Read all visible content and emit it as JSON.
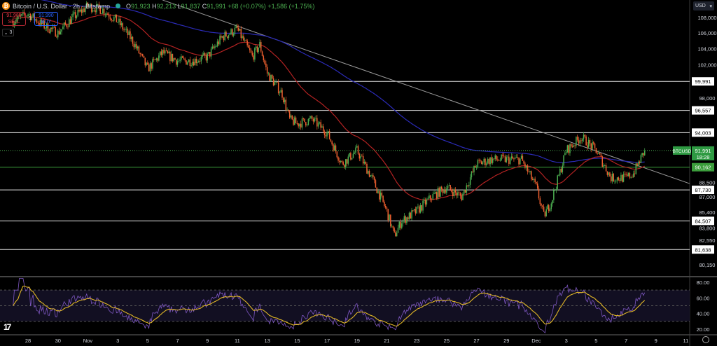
{
  "header": {
    "symbol_title": "Bitcoin / U.S. Dollar · 2h · Bitstamp",
    "ohlc": {
      "o_label": "O",
      "o": "91,923",
      "h_label": "H",
      "h": "92,213",
      "l_label": "L",
      "l": "91,837",
      "c_label": "C",
      "c": "91,991",
      "change": "+68 (+0.07%)",
      "change2": "+1,586 (+1.75%)"
    },
    "sell_price": "91,989",
    "sell_label": "SELL",
    "spread": "1",
    "buy_price": "91,990",
    "buy_label": "BUY",
    "collapsed_count": "3"
  },
  "currency": "USD",
  "colors": {
    "up": "#4caf50",
    "down": "#f0602f",
    "ma_fast": "#b22222",
    "ma_slow": "#2b2bb8",
    "rsi": "#7e57c2",
    "rsi_ma": "#e0b627",
    "level": "#e6e6e6",
    "support": "#3b9d3b",
    "trend": "#9a9a9a"
  },
  "chart_data": {
    "type": "candlestick",
    "scale": "log",
    "ylim": [
      79500,
      110000
    ],
    "xlim": [
      "2025-10-26T00:00",
      "2025-12-12T08:00"
    ],
    "interval": "2h",
    "price_path": [
      [
        "2025-10-27",
        107500
      ],
      [
        "2025-10-28",
        108500
      ],
      [
        "2025-10-29",
        107000
      ],
      [
        "2025-10-30",
        106000
      ],
      [
        "2025-10-31",
        108000
      ],
      [
        "2025-11-01",
        109500
      ],
      [
        "2025-11-02",
        109000
      ],
      [
        "2025-11-03",
        107500
      ],
      [
        "2025-11-04",
        105000
      ],
      [
        "2025-11-05",
        101500
      ],
      [
        "2025-11-06",
        103500
      ],
      [
        "2025-11-07",
        102500
      ],
      [
        "2025-11-08",
        102500
      ],
      [
        "2025-11-09",
        103000
      ],
      [
        "2025-11-10",
        105500
      ],
      [
        "2025-11-11",
        106500
      ],
      [
        "2025-11-12",
        103000
      ],
      [
        "2025-11-12T12:00",
        104500
      ],
      [
        "2025-11-13",
        101000
      ],
      [
        "2025-11-14",
        98500
      ],
      [
        "2025-11-14T12:00",
        95500
      ],
      [
        "2025-11-15",
        95000
      ],
      [
        "2025-11-16",
        95500
      ],
      [
        "2025-11-17",
        94000
      ],
      [
        "2025-11-18",
        90500
      ],
      [
        "2025-11-19",
        92000
      ],
      [
        "2025-11-20",
        89000
      ],
      [
        "2025-11-21",
        85500
      ],
      [
        "2025-11-21T12:00",
        83000
      ],
      [
        "2025-11-22",
        84500
      ],
      [
        "2025-11-23",
        85500
      ],
      [
        "2025-11-24",
        87000
      ],
      [
        "2025-11-25",
        88000
      ],
      [
        "2025-11-26",
        87000
      ],
      [
        "2025-11-27",
        90500
      ],
      [
        "2025-11-28",
        91000
      ],
      [
        "2025-11-29",
        91000
      ],
      [
        "2025-11-30",
        91000
      ],
      [
        "2025-12-01",
        88000
      ],
      [
        "2025-12-01T12:00",
        85000
      ],
      [
        "2025-12-02",
        86500
      ],
      [
        "2025-12-03",
        92000
      ],
      [
        "2025-12-04",
        93500
      ],
      [
        "2025-12-05",
        92000
      ],
      [
        "2025-12-06",
        89000
      ],
      [
        "2025-12-07",
        89000
      ],
      [
        "2025-12-07T12:00",
        89500
      ],
      [
        "2025-12-08T06:00",
        91991
      ]
    ],
    "price_ticks": [
      "108,000",
      "106,000",
      "104,000",
      "102,000",
      "98,000",
      "88,500",
      "87,000",
      "85,400",
      "83,800",
      "82,550",
      "80,150"
    ],
    "price_tick_values": [
      108000,
      106000,
      104000,
      102000,
      98000,
      88500,
      87000,
      85400,
      83800,
      82550,
      80150
    ],
    "levels": [
      {
        "value": 99991,
        "label": "99,991"
      },
      {
        "value": 96557,
        "label": "96,557"
      },
      {
        "value": 94003,
        "label": "94,003"
      },
      {
        "value": 87730,
        "label": "87,730"
      },
      {
        "value": 84507,
        "label": "84,507"
      },
      {
        "value": 81638,
        "label": "81,638"
      }
    ],
    "support_level": {
      "value": 90162,
      "label": "90,162"
    },
    "last_price": {
      "symbol": "BTCUSD",
      "value": 91991,
      "label": "91,991",
      "countdown": "18:28"
    },
    "trendline": [
      [
        "2025-11-06",
        110300
      ],
      [
        "2025-12-11T06:00",
        88400
      ]
    ],
    "rsi": {
      "ylim": [
        15,
        85
      ],
      "ticks": [
        "80.00",
        "60.00",
        "40.00",
        "20.00"
      ],
      "tick_values": [
        80,
        60,
        40,
        20
      ],
      "band": [
        30,
        70
      ],
      "mid": 50
    },
    "x_ticks": [
      "28",
      "30",
      "Nov",
      "3",
      "5",
      "7",
      "9",
      "11",
      "13",
      "15",
      "17",
      "19",
      "21",
      "23",
      "25",
      "27",
      "29",
      "Dec",
      "3",
      "5",
      "7",
      "9",
      "11"
    ],
    "x_tick_dates": [
      "2025-10-28",
      "2025-10-30",
      "2025-11-01",
      "2025-11-03",
      "2025-11-05",
      "2025-11-07",
      "2025-11-09",
      "2025-11-11",
      "2025-11-13",
      "2025-11-15",
      "2025-11-17",
      "2025-11-19",
      "2025-11-21",
      "2025-11-23",
      "2025-11-25",
      "2025-11-27",
      "2025-11-29",
      "2025-12-01",
      "2025-12-03",
      "2025-12-05",
      "2025-12-07",
      "2025-12-09",
      "2025-12-11"
    ]
  }
}
